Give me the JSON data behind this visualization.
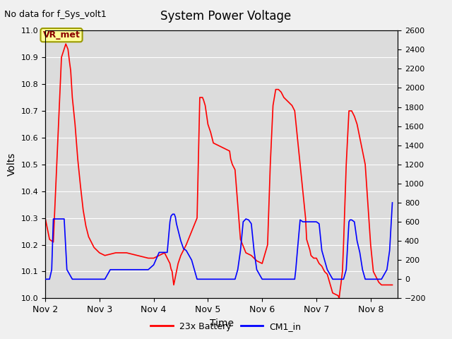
{
  "title": "System Power Voltage",
  "top_left_label": "No data for f_Sys_volt1",
  "vr_met_label": "VR_met",
  "xlabel": "Time",
  "ylabel_left": "Volts",
  "ylim_left": [
    10.0,
    11.0
  ],
  "ylim_right": [
    -200,
    2600
  ],
  "xlim": [
    0.0,
    6.5
  ],
  "x_ticks": [
    0,
    1,
    2,
    3,
    4,
    5,
    6
  ],
  "x_tick_labels": [
    "Nov 2",
    "Nov 3",
    "Nov 4",
    "Nov 5",
    "Nov 6",
    "Nov 7",
    "Nov 8"
  ],
  "y_ticks_left": [
    10.0,
    10.1,
    10.2,
    10.3,
    10.4,
    10.5,
    10.6,
    10.7,
    10.8,
    10.9,
    11.0
  ],
  "y_ticks_right": [
    -200,
    0,
    200,
    400,
    600,
    800,
    1000,
    1200,
    1400,
    1600,
    1800,
    2000,
    2200,
    2400,
    2600
  ],
  "bg_color": "#dcdcdc",
  "fig_color": "#f0f0f0",
  "grid_color": "#ffffff",
  "line_red_color": "#ff0000",
  "line_blue_color": "#0000ff",
  "legend_entries": [
    "23x Battery",
    "CM1_in"
  ],
  "legend_colors": [
    "#ff0000",
    "#0000ff"
  ],
  "red_x": [
    0.0,
    0.08,
    0.15,
    0.3,
    0.38,
    0.42,
    0.45,
    0.47,
    0.5,
    0.55,
    0.6,
    0.65,
    0.7,
    0.75,
    0.8,
    0.9,
    1.0,
    1.1,
    1.3,
    1.5,
    1.7,
    1.9,
    2.0,
    2.1,
    2.2,
    2.3,
    2.32,
    2.34,
    2.37,
    2.42,
    2.45,
    2.5,
    2.55,
    2.6,
    2.7,
    2.8,
    2.85,
    2.9,
    2.92,
    2.95,
    3.0,
    3.05,
    3.1,
    3.4,
    3.42,
    3.45,
    3.5,
    3.55,
    3.6,
    3.7,
    3.8,
    3.85,
    3.9,
    4.0,
    4.1,
    4.15,
    4.2,
    4.25,
    4.3,
    4.35,
    4.4,
    4.55,
    4.6,
    4.65,
    4.8,
    4.82,
    4.85,
    4.88,
    4.9,
    4.95,
    5.0,
    5.05,
    5.1,
    5.15,
    5.2,
    5.3,
    5.4,
    5.42,
    5.43,
    5.45,
    5.48,
    5.5,
    5.55,
    5.6,
    5.65,
    5.7,
    5.75,
    5.8,
    5.9,
    6.0,
    6.05,
    6.1,
    6.15,
    6.2,
    6.3,
    6.4
  ],
  "red_y": [
    10.3,
    10.22,
    10.21,
    10.9,
    10.95,
    10.93,
    10.88,
    10.85,
    10.75,
    10.65,
    10.52,
    10.42,
    10.33,
    10.27,
    10.23,
    10.19,
    10.17,
    10.16,
    10.17,
    10.17,
    10.16,
    10.15,
    10.15,
    10.16,
    10.17,
    10.13,
    10.11,
    10.1,
    10.05,
    10.1,
    10.13,
    10.16,
    10.18,
    10.2,
    10.25,
    10.3,
    10.75,
    10.75,
    10.74,
    10.72,
    10.65,
    10.62,
    10.58,
    10.55,
    10.52,
    10.5,
    10.48,
    10.35,
    10.22,
    10.17,
    10.16,
    10.15,
    10.14,
    10.13,
    10.2,
    10.5,
    10.72,
    10.78,
    10.78,
    10.77,
    10.75,
    10.72,
    10.7,
    10.6,
    10.3,
    10.22,
    10.2,
    10.18,
    10.16,
    10.15,
    10.15,
    10.13,
    10.12,
    10.1,
    10.09,
    10.02,
    10.01,
    10.0,
    10.02,
    10.05,
    10.1,
    10.2,
    10.5,
    10.7,
    10.7,
    10.68,
    10.65,
    10.6,
    10.5,
    10.2,
    10.1,
    10.08,
    10.06,
    10.05,
    10.05,
    10.05
  ],
  "blue_x": [
    0.0,
    0.02,
    0.08,
    0.12,
    0.15,
    0.35,
    0.4,
    0.5,
    0.55,
    1.0,
    1.1,
    1.15,
    1.2,
    1.3,
    1.5,
    1.7,
    1.9,
    2.0,
    2.1,
    2.25,
    2.3,
    2.32,
    2.35,
    2.38,
    2.4,
    2.42,
    2.5,
    2.55,
    2.6,
    2.65,
    2.7,
    2.75,
    2.8,
    3.0,
    3.1,
    3.4,
    3.5,
    3.55,
    3.6,
    3.65,
    3.7,
    3.75,
    3.8,
    3.85,
    3.9,
    4.0,
    4.1,
    4.3,
    4.55,
    4.6,
    4.62,
    4.65,
    4.7,
    4.75,
    5.0,
    5.05,
    5.1,
    5.2,
    5.3,
    5.4,
    5.5,
    5.55,
    5.6,
    5.62,
    5.65,
    5.7,
    5.75,
    5.8,
    5.85,
    5.9,
    6.0,
    6.1,
    6.2,
    6.3,
    6.35,
    6.4
  ],
  "blue_y": [
    0,
    0,
    0,
    100,
    630,
    630,
    100,
    0,
    0,
    0,
    0,
    50,
    100,
    100,
    100,
    100,
    100,
    150,
    280,
    280,
    600,
    660,
    680,
    680,
    650,
    580,
    400,
    320,
    300,
    250,
    200,
    100,
    0,
    0,
    0,
    0,
    0,
    100,
    300,
    600,
    630,
    620,
    580,
    300,
    100,
    0,
    0,
    0,
    0,
    0,
    100,
    300,
    620,
    600,
    600,
    580,
    300,
    100,
    0,
    0,
    0,
    100,
    600,
    620,
    620,
    600,
    400,
    280,
    100,
    0,
    0,
    0,
    0,
    100,
    300,
    800
  ]
}
